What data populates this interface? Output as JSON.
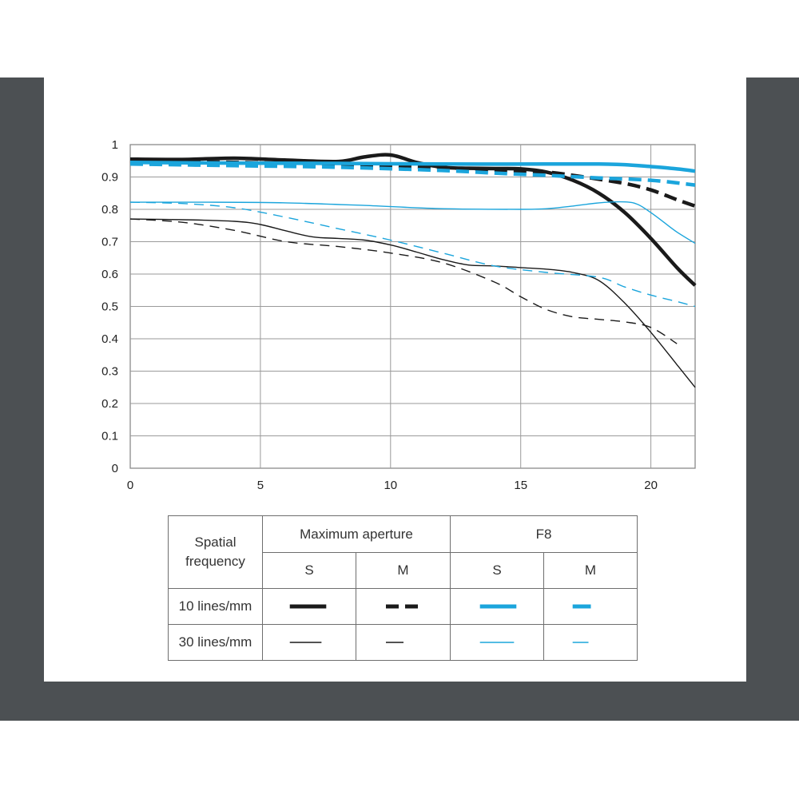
{
  "chart_data": {
    "type": "line",
    "title": "",
    "xlabel": "",
    "ylabel": "",
    "xlim": [
      0,
      21.7
    ],
    "ylim": [
      0,
      1
    ],
    "x_ticks": [
      "0",
      "5",
      "10",
      "15",
      "20"
    ],
    "x_tick_values": [
      0,
      5,
      10,
      15,
      20
    ],
    "y_ticks": [
      "0",
      "0.1",
      "0.2",
      "0.3",
      "0.4",
      "0.5",
      "0.6",
      "0.7",
      "0.8",
      "0.9",
      "1"
    ],
    "y_tick_values": [
      0,
      0.1,
      0.2,
      0.3,
      0.4,
      0.5,
      0.6,
      0.7,
      0.8,
      0.9,
      1
    ],
    "grid": true,
    "series": [
      {
        "group": "Maximum aperture",
        "frequency": "10 lines/mm",
        "line": "S",
        "color": "#1a1a1a",
        "weight": "thick",
        "dashed": false,
        "x": [
          0,
          2,
          4,
          6,
          8,
          9,
          10,
          11,
          12,
          13,
          14,
          15,
          16,
          17,
          18,
          19,
          20,
          21,
          21.7
        ],
        "y": [
          0.955,
          0.954,
          0.958,
          0.952,
          0.948,
          0.962,
          0.968,
          0.945,
          0.93,
          0.927,
          0.926,
          0.925,
          0.915,
          0.89,
          0.85,
          0.79,
          0.71,
          0.62,
          0.565
        ]
      },
      {
        "group": "Maximum aperture",
        "frequency": "10 lines/mm",
        "line": "M",
        "color": "#1a1a1a",
        "weight": "thick",
        "dashed": true,
        "x": [
          0,
          4,
          8,
          10,
          12,
          14,
          16,
          17,
          18,
          19,
          20,
          21,
          21.7
        ],
        "y": [
          0.95,
          0.945,
          0.938,
          0.933,
          0.928,
          0.922,
          0.915,
          0.905,
          0.893,
          0.88,
          0.86,
          0.83,
          0.81
        ]
      },
      {
        "group": "F8",
        "frequency": "10 lines/mm",
        "line": "S",
        "color": "#1ba5dc",
        "weight": "thick",
        "dashed": false,
        "x": [
          0,
          4,
          8,
          12,
          16,
          18,
          19,
          20,
          21,
          21.7
        ],
        "y": [
          0.945,
          0.943,
          0.942,
          0.94,
          0.94,
          0.94,
          0.938,
          0.932,
          0.925,
          0.918
        ]
      },
      {
        "group": "F8",
        "frequency": "10 lines/mm",
        "line": "M",
        "color": "#1ba5dc",
        "weight": "thick",
        "dashed": true,
        "x": [
          0,
          4,
          8,
          12,
          14,
          16,
          18,
          20,
          21.7
        ],
        "y": [
          0.94,
          0.935,
          0.93,
          0.92,
          0.912,
          0.905,
          0.897,
          0.89,
          0.875
        ]
      },
      {
        "group": "Maximum aperture",
        "frequency": "30 lines/mm",
        "line": "S",
        "color": "#1a1a1a",
        "weight": "thin",
        "dashed": false,
        "x": [
          0,
          2,
          4,
          5,
          6,
          7,
          8,
          9,
          10,
          11,
          12,
          13,
          14,
          15,
          16,
          17,
          18,
          19,
          20,
          21,
          21.7
        ],
        "y": [
          0.77,
          0.768,
          0.763,
          0.753,
          0.733,
          0.715,
          0.71,
          0.705,
          0.69,
          0.668,
          0.645,
          0.628,
          0.625,
          0.62,
          0.615,
          0.605,
          0.58,
          0.51,
          0.42,
          0.32,
          0.25
        ]
      },
      {
        "group": "Maximum aperture",
        "frequency": "30 lines/mm",
        "line": "M",
        "color": "#1a1a1a",
        "weight": "thin",
        "dashed": true,
        "x": [
          0,
          2,
          4,
          6,
          8,
          10,
          12,
          14,
          15,
          16,
          17,
          18,
          19,
          20,
          21
        ],
        "y": [
          0.77,
          0.76,
          0.735,
          0.7,
          0.685,
          0.665,
          0.635,
          0.575,
          0.53,
          0.49,
          0.468,
          0.46,
          0.452,
          0.435,
          0.385
        ]
      },
      {
        "group": "F8",
        "frequency": "30 lines/mm",
        "line": "S",
        "color": "#1ba5dc",
        "weight": "thin",
        "dashed": false,
        "x": [
          0,
          3,
          6,
          9,
          12,
          15,
          16,
          17,
          18,
          19,
          19.5,
          20,
          20.5,
          21,
          21.7
        ],
        "y": [
          0.822,
          0.822,
          0.82,
          0.812,
          0.802,
          0.8,
          0.802,
          0.81,
          0.82,
          0.823,
          0.815,
          0.79,
          0.76,
          0.73,
          0.695
        ]
      },
      {
        "group": "F8",
        "frequency": "30 lines/mm",
        "line": "M",
        "color": "#1ba5dc",
        "weight": "thin",
        "dashed": true,
        "x": [
          0,
          2,
          4,
          6,
          8,
          10,
          12,
          14,
          16,
          18,
          19,
          20,
          21,
          21.7
        ],
        "y": [
          0.822,
          0.818,
          0.805,
          0.775,
          0.74,
          0.705,
          0.665,
          0.625,
          0.605,
          0.59,
          0.56,
          0.535,
          0.515,
          0.5
        ]
      }
    ]
  },
  "legend": {
    "header_spatial": "Spatial\nfrequency",
    "header_max": "Maximum aperture",
    "header_f8": "F8",
    "s": "S",
    "m": "M",
    "row1": "10 lines/mm",
    "row2": "30 lines/mm",
    "color_black": "#1a1a1a",
    "color_blue": "#1ba5dc"
  }
}
